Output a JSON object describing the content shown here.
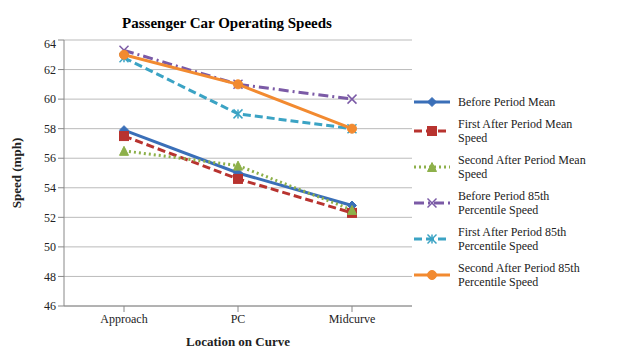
{
  "chart_data": {
    "type": "line",
    "title": "Passenger Car Operating Speeds",
    "x_label": "Location on Curve",
    "y_label": "Speed (mph)",
    "categories": [
      "Approach",
      "PC",
      "Midcurve"
    ],
    "ylim": [
      46,
      64
    ],
    "yticks": [
      46,
      48,
      50,
      52,
      54,
      56,
      58,
      60,
      62,
      64
    ],
    "grid": true,
    "legend": "right",
    "series": [
      {
        "name": "Before Period Mean",
        "color": "#3A6FB8",
        "marker": "diamond",
        "line_style": "solid",
        "values": [
          57.9,
          55.0,
          52.8
        ]
      },
      {
        "name": "First After Period Mean Speed",
        "color": "#B8332F",
        "marker": "square",
        "line_style": "dashed",
        "values": [
          57.5,
          54.6,
          52.3
        ]
      },
      {
        "name": "Second After Period Mean Speed",
        "color": "#8DB04A",
        "marker": "triangle",
        "line_style": "dotted",
        "values": [
          56.5,
          55.5,
          52.5
        ]
      },
      {
        "name": "Before Period 85th Percentile Speed",
        "color": "#7B5AA6",
        "marker": "x",
        "line_style": "dashdot",
        "values": [
          63.3,
          61.0,
          60.0
        ]
      },
      {
        "name": "First After Period 85th Percentile Speed",
        "color": "#3BA3C4",
        "marker": "star",
        "line_style": "dashed",
        "values": [
          62.8,
          59.0,
          58.0
        ]
      },
      {
        "name": "Second After Period 85th Percentile Speed",
        "color": "#F28A30",
        "marker": "circle",
        "line_style": "solid",
        "values": [
          63.0,
          61.0,
          58.0
        ]
      }
    ]
  }
}
